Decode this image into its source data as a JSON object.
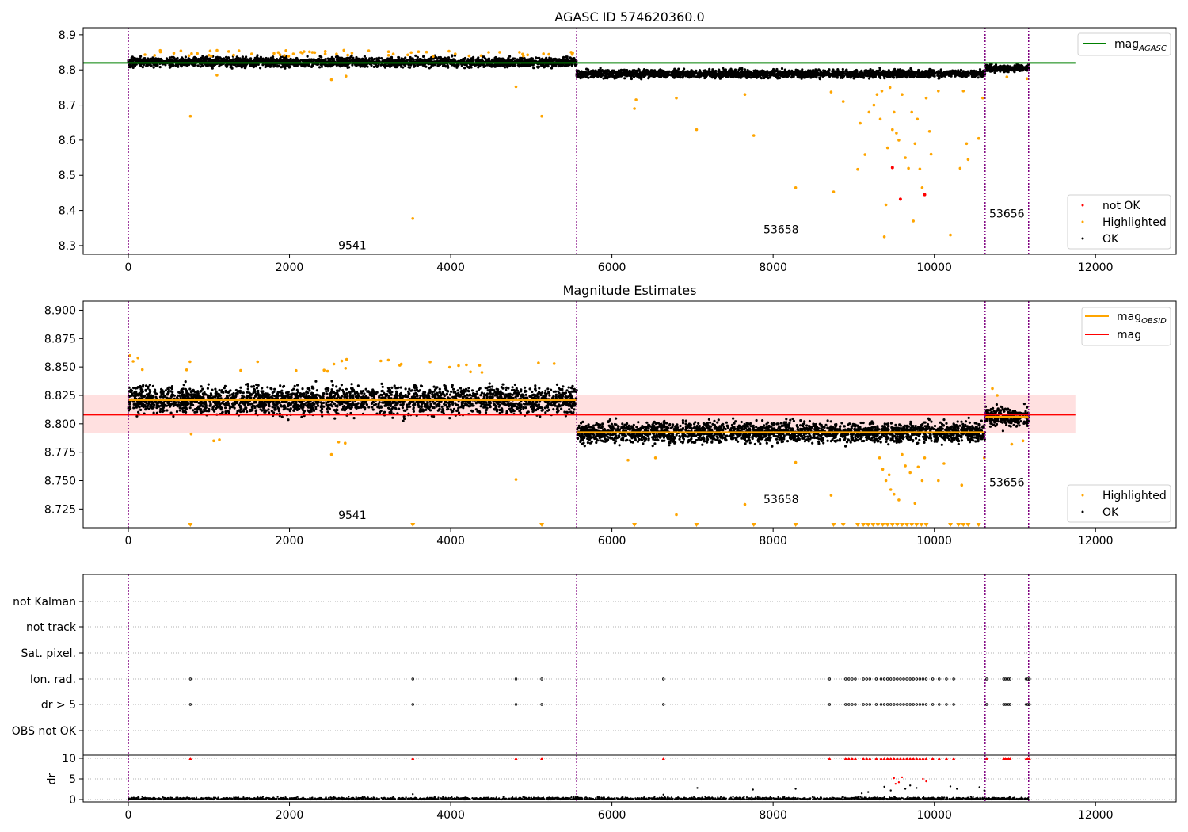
{
  "figure": {
    "title": "AGASC ID 574620360.0",
    "colors": {
      "ok": "#000000",
      "highlighted": "#ffa500",
      "not_ok": "#ff0000",
      "agasc_line": "#008000",
      "mag_line": "#ff0000",
      "mag_band": "#ffcccc",
      "obs_divider": "#800080",
      "grid": "#b0b0b0"
    }
  },
  "chart_data": [
    {
      "type": "scatter",
      "title": "AGASC ID 574620360.0",
      "xlim": [
        -560,
        13000
      ],
      "ylim": [
        8.275,
        8.92
      ],
      "x_ticks": [
        0,
        2000,
        4000,
        6000,
        8000,
        10000,
        12000
      ],
      "y_ticks": [
        8.3,
        8.4,
        8.5,
        8.6,
        8.7,
        8.8,
        8.9
      ],
      "obs_boundaries": [
        0,
        5563,
        10630,
        11170
      ],
      "obs_labels": [
        {
          "text": "9541",
          "x": 2780,
          "y": 8.29
        },
        {
          "text": "53658",
          "x": 8100,
          "y": 8.335
        },
        {
          "text": "53656",
          "x": 10900,
          "y": 8.38
        }
      ],
      "reference_line": {
        "name": "mag_AGASC",
        "value": 8.82,
        "x_range": [
          -560,
          11750
        ]
      },
      "series_levels": [
        {
          "x_range": [
            0,
            5563
          ],
          "center": 8.822,
          "spread": 0.012
        },
        {
          "x_range": [
            5563,
            10630
          ],
          "center": 8.789,
          "spread": 0.01
        },
        {
          "x_range": [
            10630,
            11170
          ],
          "center": 8.805,
          "spread": 0.009
        }
      ],
      "legend": {
        "position": "upper right / lower right",
        "entries": [
          "mag_AGASC",
          "not OK",
          "Highlighted",
          "OK"
        ]
      },
      "highlighted_points": [
        [
          770,
          8.668
        ],
        [
          3530,
          8.377
        ],
        [
          4810,
          8.752
        ],
        [
          5130,
          8.668
        ],
        [
          1100,
          8.785
        ],
        [
          2520,
          8.772
        ],
        [
          2700,
          8.782
        ],
        [
          6280,
          8.69
        ],
        [
          6300,
          8.715
        ],
        [
          6800,
          8.72
        ],
        [
          7050,
          8.63
        ],
        [
          7650,
          8.73
        ],
        [
          7760,
          8.613
        ],
        [
          8280,
          8.465
        ],
        [
          8720,
          8.737
        ],
        [
          8750,
          8.453
        ],
        [
          8870,
          8.71
        ],
        [
          9050,
          8.517
        ],
        [
          9080,
          8.648
        ],
        [
          9140,
          8.559
        ],
        [
          9190,
          8.68
        ],
        [
          9250,
          8.7
        ],
        [
          9290,
          8.73
        ],
        [
          9330,
          8.66
        ],
        [
          9350,
          8.74
        ],
        [
          9400,
          8.416
        ],
        [
          9420,
          8.578
        ],
        [
          9450,
          8.75
        ],
        [
          9480,
          8.63
        ],
        [
          9500,
          8.68
        ],
        [
          9530,
          8.62
        ],
        [
          9560,
          8.6
        ],
        [
          9600,
          8.73
        ],
        [
          9640,
          8.55
        ],
        [
          9680,
          8.52
        ],
        [
          9720,
          8.68
        ],
        [
          9740,
          8.37
        ],
        [
          9760,
          8.59
        ],
        [
          9790,
          8.66
        ],
        [
          9820,
          8.518
        ],
        [
          9850,
          8.465
        ],
        [
          9900,
          8.72
        ],
        [
          9940,
          8.625
        ],
        [
          9960,
          8.56
        ],
        [
          10050,
          8.74
        ],
        [
          10200,
          8.33
        ],
        [
          10320,
          8.52
        ],
        [
          10360,
          8.74
        ],
        [
          10400,
          8.59
        ],
        [
          10420,
          8.545
        ],
        [
          10550,
          8.605
        ],
        [
          10600,
          8.72
        ],
        [
          9380,
          8.325
        ],
        [
          10900,
          8.78
        ],
        [
          11150,
          8.775
        ]
      ],
      "not_ok_points": [
        [
          9480,
          8.522
        ],
        [
          9580,
          8.432
        ],
        [
          9880,
          8.445
        ]
      ]
    },
    {
      "type": "scatter",
      "title": "Magnitude Estimates",
      "xlim": [
        -560,
        13000
      ],
      "ylim": [
        8.7085,
        8.908
      ],
      "x_ticks": [
        0,
        2000,
        4000,
        6000,
        8000,
        10000,
        12000
      ],
      "y_ticks": [
        8.725,
        8.75,
        8.775,
        8.8,
        8.825,
        8.85,
        8.875,
        8.9
      ],
      "obs_boundaries": [
        0,
        5563,
        10630,
        11170
      ],
      "obs_labels": [
        {
          "text": "9541",
          "x": 2780,
          "y": 8.716
        },
        {
          "text": "53658",
          "x": 8100,
          "y": 8.73
        },
        {
          "text": "53656",
          "x": 10900,
          "y": 8.745
        }
      ],
      "mag_line": {
        "name": "mag",
        "value": 8.808,
        "band": [
          8.792,
          8.825
        ],
        "x_range": [
          -560,
          11750
        ]
      },
      "mag_obsid_segments": [
        {
          "x_range": [
            0,
            5563
          ],
          "value": 8.821
        },
        {
          "x_range": [
            5563,
            10630
          ],
          "value": 8.7925
        },
        {
          "x_range": [
            10630,
            11170
          ],
          "value": 8.806
        }
      ],
      "series_levels": [
        {
          "x_range": [
            0,
            5563
          ],
          "center": 8.821,
          "spread": 0.011
        },
        {
          "x_range": [
            5563,
            10630
          ],
          "center": 8.7925,
          "spread": 0.008
        },
        {
          "x_range": [
            10630,
            11170
          ],
          "center": 8.806,
          "spread": 0.007
        }
      ],
      "legend": {
        "position": "upper right / lower right",
        "entries": [
          "mag_OBSID",
          "mag",
          "Highlighted",
          "OK"
        ]
      },
      "clipped_marker_x": [
        770,
        3530,
        5130,
        6280,
        7050,
        7760,
        8280,
        8750,
        8870,
        9050,
        9120,
        9180,
        9240,
        9300,
        9360,
        9420,
        9480,
        9540,
        9600,
        9660,
        9720,
        9780,
        9840,
        9900,
        10200,
        10300,
        10360,
        10420,
        10550
      ],
      "highlighted_points": [
        [
          20,
          8.86
        ],
        [
          60,
          8.855
        ],
        [
          120,
          8.858
        ],
        [
          780,
          8.791
        ],
        [
          1060,
          8.785
        ],
        [
          1130,
          8.786
        ],
        [
          2520,
          8.773
        ],
        [
          2610,
          8.784
        ],
        [
          2690,
          8.783
        ],
        [
          4810,
          8.751
        ],
        [
          6200,
          8.768
        ],
        [
          6540,
          8.77
        ],
        [
          6800,
          8.72
        ],
        [
          7650,
          8.729
        ],
        [
          8280,
          8.766
        ],
        [
          8720,
          8.737
        ],
        [
          9320,
          8.77
        ],
        [
          9360,
          8.76
        ],
        [
          9400,
          8.75
        ],
        [
          9440,
          8.755
        ],
        [
          9460,
          8.742
        ],
        [
          9500,
          8.738
        ],
        [
          9560,
          8.733
        ],
        [
          9600,
          8.773
        ],
        [
          9640,
          8.763
        ],
        [
          9700,
          8.757
        ],
        [
          9760,
          8.73
        ],
        [
          9800,
          8.762
        ],
        [
          9850,
          8.75
        ],
        [
          9880,
          8.77
        ],
        [
          10050,
          8.75
        ],
        [
          10120,
          8.765
        ],
        [
          10340,
          8.746
        ],
        [
          10620,
          8.77
        ],
        [
          10720,
          8.831
        ],
        [
          10780,
          8.825
        ],
        [
          10960,
          8.782
        ],
        [
          11100,
          8.785
        ]
      ]
    },
    {
      "type": "scatter",
      "title": "",
      "xlim": [
        -560,
        13000
      ],
      "x_ticks": [
        0,
        2000,
        4000,
        6000,
        8000,
        10000,
        12000
      ],
      "categories": [
        "not Kalman",
        "not track",
        "Sat. pixel.",
        "Ion. rad.",
        "dr > 5",
        "OBS not OK"
      ],
      "flag_points_x": [
        770,
        3530,
        4810,
        5130,
        6640,
        8700,
        8900,
        8940,
        8980,
        9020,
        9120,
        9160,
        9200,
        9280,
        9340,
        9380,
        9420,
        9460,
        9500,
        9540,
        9580,
        9620,
        9660,
        9700,
        9740,
        9780,
        9820,
        9860,
        9900,
        9980,
        10060,
        10150,
        10240,
        10650,
        10860,
        10880,
        10900,
        10920,
        10940,
        11140,
        11160,
        11180
      ],
      "dr_ylabel": "dr",
      "dr_ylim": [
        -0.5,
        10.5
      ],
      "dr_ticks": [
        0,
        5,
        10
      ],
      "dr_clipped_x": [
        770,
        3530,
        4810,
        5130,
        6640,
        8700,
        8900,
        8940,
        8980,
        9020,
        9120,
        9160,
        9200,
        9280,
        9340,
        9380,
        9420,
        9460,
        9500,
        9540,
        9580,
        9620,
        9660,
        9700,
        9740,
        9780,
        9820,
        9860,
        9900,
        9980,
        10060,
        10150,
        10240,
        10650,
        10860,
        10880,
        10900,
        10920,
        10940,
        11140,
        11160,
        11180
      ],
      "dr_outliers": [
        [
          7060,
          2.8
        ],
        [
          7750,
          2.4
        ],
        [
          8280,
          2.6
        ],
        [
          9100,
          1.5
        ],
        [
          9180,
          1.8
        ],
        [
          9380,
          3.1
        ],
        [
          9460,
          2.2
        ],
        [
          9500,
          5.2
        ],
        [
          9520,
          3.8
        ],
        [
          9560,
          4.2
        ],
        [
          9600,
          5.4
        ],
        [
          9640,
          2.6
        ],
        [
          9700,
          3.4
        ],
        [
          9780,
          2.8
        ],
        [
          9860,
          5.0
        ],
        [
          9900,
          4.4
        ],
        [
          10200,
          3.2
        ],
        [
          10280,
          2.6
        ],
        [
          10560,
          3.0
        ],
        [
          10620,
          2.2
        ],
        [
          3530,
          1.3
        ],
        [
          6640,
          1.2
        ]
      ]
    }
  ],
  "legends": {
    "top": {
      "mag_agasc_base": "mag",
      "mag_agasc_sub": "AGASC",
      "not_ok": "not OK",
      "highlighted": "Highlighted",
      "ok": "OK"
    },
    "mid": {
      "mag_obsid_base": "mag",
      "mag_obsid_sub": "OBSID",
      "mag": "mag",
      "highlighted": "Highlighted",
      "ok": "OK"
    }
  },
  "panel2_title": "Magnitude Estimates"
}
